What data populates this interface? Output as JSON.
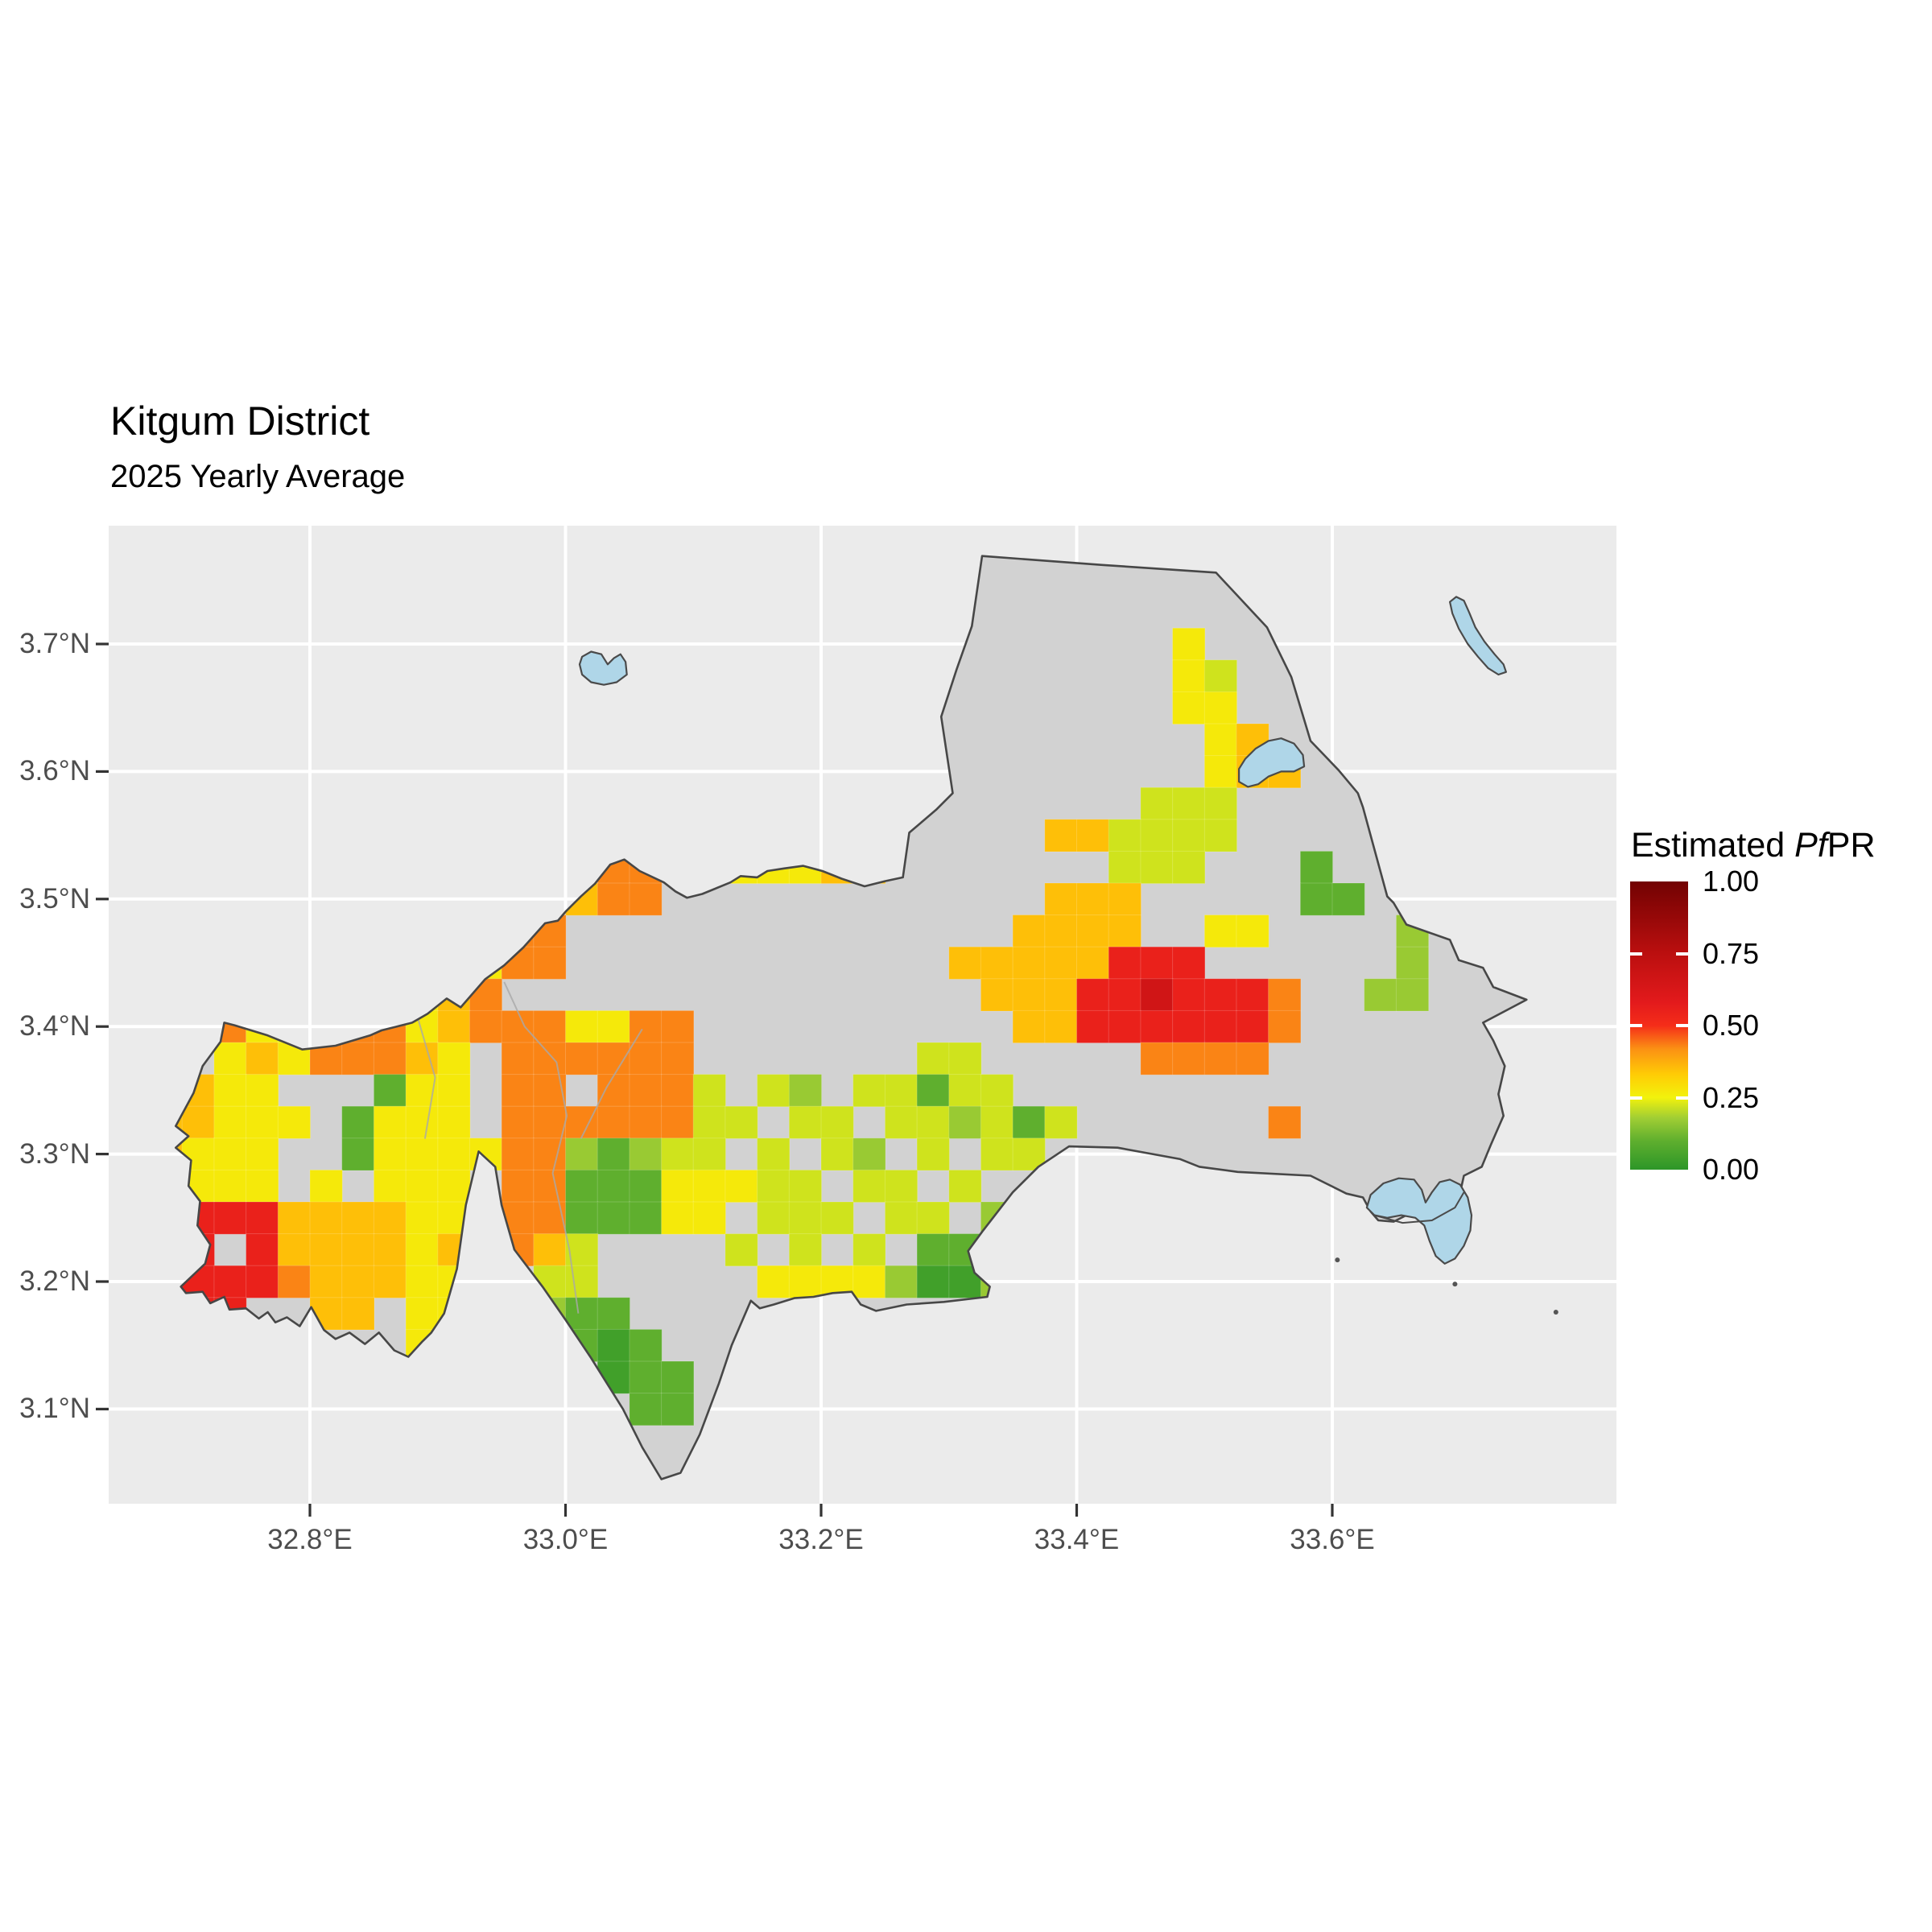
{
  "title": "Kitgum District",
  "subtitle": "2025 Yearly Average",
  "legend": {
    "title_prefix": "Estimated ",
    "title_italic": "Pf",
    "title_suffix": "PR",
    "labels": [
      "1.00",
      "0.75",
      "0.50",
      "0.25",
      "0.00"
    ],
    "label_values": [
      1.0,
      0.75,
      0.5,
      0.25,
      0.0
    ],
    "inner_tick_values": [
      0.75,
      0.5,
      0.25
    ]
  },
  "axes": {
    "x_ticks": [
      {
        "label": "32.8°E",
        "lon": 32.8
      },
      {
        "label": "33.0°E",
        "lon": 33.0
      },
      {
        "label": "33.2°E",
        "lon": 33.2
      },
      {
        "label": "33.4°E",
        "lon": 33.4
      },
      {
        "label": "33.6°E",
        "lon": 33.6
      }
    ],
    "y_ticks": [
      {
        "label": "3.7°N",
        "lat": 3.7
      },
      {
        "label": "3.6°N",
        "lat": 3.6
      },
      {
        "label": "3.5°N",
        "lat": 3.5
      },
      {
        "label": "3.4°N",
        "lat": 3.4
      },
      {
        "label": "3.3°N",
        "lat": 3.3
      },
      {
        "label": "3.2°N",
        "lat": 3.2
      },
      {
        "label": "3.1°N",
        "lat": 3.1
      }
    ]
  },
  "colors": {
    "panel_bg": "#EBEBEB",
    "gridline": "#FFFFFF",
    "district_fill": "#D2D2D2",
    "district_border": "#474747",
    "lake_fill": "#AFD6E8",
    "lake_border": "#4A4A4A",
    "river": "#A9A9A9",
    "axis_text": "#4D4D4D",
    "tick_mark": "#333333"
  },
  "chart_data": {
    "type": "heatmap",
    "title": "Kitgum District",
    "subtitle": "2025 Yearly Average",
    "legend_title": "Estimated PfPR",
    "value_range": [
      0.0,
      1.0
    ],
    "lon_range_shown": [
      32.64,
      33.82
    ],
    "lat_range_shown": [
      3.03,
      3.79
    ],
    "gradient_stops": [
      [
        0.0,
        "#2D9628"
      ],
      [
        0.1,
        "#5FAF2E"
      ],
      [
        0.18,
        "#A1CE34"
      ],
      [
        0.25,
        "#F2F20C"
      ],
      [
        0.33,
        "#FFCC05"
      ],
      [
        0.42,
        "#FB9014"
      ],
      [
        0.5,
        "#F52D19"
      ],
      [
        0.58,
        "#E31A1C"
      ],
      [
        0.75,
        "#BB0F0F"
      ],
      [
        1.0,
        "#720202"
      ]
    ],
    "raster": {
      "lon0": 32.675,
      "lat0": 3.7125,
      "step": 0.025,
      "value_map": {
        "1": 0.04,
        "2": 0.1,
        "3": 0.17,
        "4": 0.22,
        "5": 0.27,
        "6": 0.35,
        "7": 0.4,
        "8": 0.43,
        "9": 0.55,
        "B": 0.66
      },
      "rows": [
        "................................5.......",
        "................................54......",
        "................................55......",
        ".................................56.....",
        ".................................566....",
        "...............................444......",
        "............................664444......",
        "..............88..55566.......444...2...",
        ".............688............666.....22..",
        "..........588..............6666..55....3",
        ".........5588............66666999......3",
        "........568...............66699B9998..33",
        "..855888568885588..........669999998....",
        "..56588865.888888.......44.....8888.....",
        "5655...255.88.8884.43.44244.............",
        "66555.2555.88888844.44.443424......8....",
        "6555..255558832344.4.43.4.44............",
        ".555.5.555.8822255544.44.4..............",
        ".999666655.8822255.444.44.3.............",
        ".9.9666656.864....4.4.4.22..............",
        ".9998666555.44.....55553113.............",
        ".99..66.55..322.........................",
        "........5....212........................",
        "..............122.......................",
        "...............22.......................",
        "........................................",
        "........................................"
      ]
    },
    "district_boundary": [
      [
        32.733,
        3.403
      ],
      [
        32.741,
        3.401
      ],
      [
        32.767,
        3.393
      ],
      [
        32.794,
        3.382
      ],
      [
        32.82,
        3.385
      ],
      [
        32.847,
        3.393
      ],
      [
        32.856,
        3.397
      ],
      [
        32.88,
        3.403
      ],
      [
        32.892,
        3.41
      ],
      [
        32.907,
        3.422
      ],
      [
        32.918,
        3.415
      ],
      [
        32.937,
        3.437
      ],
      [
        32.952,
        3.448
      ],
      [
        32.967,
        3.462
      ],
      [
        32.984,
        3.481
      ],
      [
        32.994,
        3.483
      ],
      [
        33.0,
        3.49
      ],
      [
        33.012,
        3.502
      ],
      [
        33.023,
        3.512
      ],
      [
        33.035,
        3.527
      ],
      [
        33.046,
        3.531
      ],
      [
        33.058,
        3.522
      ],
      [
        33.077,
        3.513
      ],
      [
        33.086,
        3.506
      ],
      [
        33.095,
        3.501
      ],
      [
        33.107,
        3.504
      ],
      [
        33.129,
        3.513
      ],
      [
        33.137,
        3.518
      ],
      [
        33.15,
        3.517
      ],
      [
        33.158,
        3.522
      ],
      [
        33.171,
        3.524
      ],
      [
        33.186,
        3.526
      ],
      [
        33.201,
        3.522
      ],
      [
        33.216,
        3.516
      ],
      [
        33.234,
        3.51
      ],
      [
        33.25,
        3.514
      ],
      [
        33.264,
        3.517
      ],
      [
        33.269,
        3.552
      ],
      [
        33.29,
        3.57
      ],
      [
        33.303,
        3.583
      ],
      [
        33.294,
        3.643
      ],
      [
        33.306,
        3.68
      ],
      [
        33.318,
        3.714
      ],
      [
        33.326,
        3.769
      ],
      [
        33.42,
        3.762
      ],
      [
        33.509,
        3.756
      ],
      [
        33.549,
        3.713
      ],
      [
        33.568,
        3.674
      ],
      [
        33.583,
        3.624
      ],
      [
        33.605,
        3.601
      ],
      [
        33.62,
        3.583
      ],
      [
        33.624,
        3.572
      ],
      [
        33.643,
        3.502
      ],
      [
        33.648,
        3.497
      ],
      [
        33.658,
        3.48
      ],
      [
        33.692,
        3.468
      ],
      [
        33.699,
        3.452
      ],
      [
        33.718,
        3.446
      ],
      [
        33.726,
        3.431
      ],
      [
        33.752,
        3.421
      ],
      [
        33.718,
        3.403
      ],
      [
        33.726,
        3.389
      ],
      [
        33.735,
        3.369
      ],
      [
        33.73,
        3.347
      ],
      [
        33.734,
        3.33
      ],
      [
        33.724,
        3.307
      ],
      [
        33.717,
        3.29
      ],
      [
        33.703,
        3.283
      ],
      [
        33.701,
        3.274
      ],
      [
        33.69,
        3.262
      ],
      [
        33.678,
        3.255
      ],
      [
        33.67,
        3.258
      ],
      [
        33.66,
        3.253
      ],
      [
        33.648,
        3.247
      ],
      [
        33.636,
        3.248
      ],
      [
        33.63,
        3.255
      ],
      [
        33.624,
        3.266
      ],
      [
        33.611,
        3.269
      ],
      [
        33.583,
        3.283
      ],
      [
        33.526,
        3.286
      ],
      [
        33.496,
        3.29
      ],
      [
        33.481,
        3.296
      ],
      [
        33.432,
        3.305
      ],
      [
        33.394,
        3.306
      ],
      [
        33.37,
        3.29
      ],
      [
        33.35,
        3.27
      ],
      [
        33.326,
        3.239
      ],
      [
        33.315,
        3.224
      ],
      [
        33.32,
        3.207
      ],
      [
        33.332,
        3.196
      ],
      [
        33.33,
        3.188
      ],
      [
        33.296,
        3.184
      ],
      [
        33.267,
        3.182
      ],
      [
        33.243,
        3.177
      ],
      [
        33.231,
        3.182
      ],
      [
        33.224,
        3.192
      ],
      [
        33.209,
        3.191
      ],
      [
        33.194,
        3.188
      ],
      [
        33.179,
        3.187
      ],
      [
        33.163,
        3.182
      ],
      [
        33.152,
        3.179
      ],
      [
        33.145,
        3.185
      ],
      [
        33.13,
        3.15
      ],
      [
        33.12,
        3.12
      ],
      [
        33.105,
        3.08
      ],
      [
        33.09,
        3.05
      ],
      [
        33.075,
        3.045
      ],
      [
        33.06,
        3.07
      ],
      [
        33.045,
        3.1
      ],
      [
        33.02,
        3.14
      ],
      [
        33.0,
        3.17
      ],
      [
        32.982,
        3.196
      ],
      [
        32.96,
        3.225
      ],
      [
        32.95,
        3.26
      ],
      [
        32.945,
        3.29
      ],
      [
        32.932,
        3.302
      ],
      [
        32.922,
        3.26
      ],
      [
        32.915,
        3.21
      ],
      [
        32.905,
        3.175
      ],
      [
        32.895,
        3.16
      ],
      [
        32.888,
        3.153
      ],
      [
        32.877,
        3.141
      ],
      [
        32.866,
        3.146
      ],
      [
        32.854,
        3.16
      ],
      [
        32.843,
        3.151
      ],
      [
        32.831,
        3.16
      ],
      [
        32.82,
        3.155
      ],
      [
        32.811,
        3.162
      ],
      [
        32.801,
        3.18
      ],
      [
        32.792,
        3.165
      ],
      [
        32.782,
        3.172
      ],
      [
        32.773,
        3.168
      ],
      [
        32.767,
        3.176
      ],
      [
        32.76,
        3.171
      ],
      [
        32.75,
        3.179
      ],
      [
        32.737,
        3.178
      ],
      [
        32.733,
        3.188
      ],
      [
        32.722,
        3.183
      ],
      [
        32.716,
        3.192
      ],
      [
        32.703,
        3.191
      ],
      [
        32.699,
        3.196
      ],
      [
        32.718,
        3.214
      ],
      [
        32.722,
        3.229
      ],
      [
        32.712,
        3.244
      ],
      [
        32.714,
        3.263
      ],
      [
        32.705,
        3.275
      ],
      [
        32.707,
        3.295
      ],
      [
        32.695,
        3.305
      ],
      [
        32.705,
        3.314
      ],
      [
        32.695,
        3.322
      ],
      [
        32.709,
        3.348
      ],
      [
        32.716,
        3.369
      ],
      [
        32.73,
        3.388
      ]
    ],
    "lakes": [
      [
        [
          33.013,
          3.69
        ],
        [
          33.02,
          3.694
        ],
        [
          33.028,
          3.692
        ],
        [
          33.033,
          3.684
        ],
        [
          33.038,
          3.689
        ],
        [
          33.043,
          3.692
        ],
        [
          33.047,
          3.686
        ],
        [
          33.048,
          3.676
        ],
        [
          33.04,
          3.67
        ],
        [
          33.03,
          3.668
        ],
        [
          33.02,
          3.67
        ],
        [
          33.013,
          3.676
        ],
        [
          33.011,
          3.684
        ]
      ],
      [
        [
          33.527,
          3.602
        ],
        [
          33.532,
          3.61
        ],
        [
          33.54,
          3.618
        ],
        [
          33.55,
          3.624
        ],
        [
          33.56,
          3.626
        ],
        [
          33.57,
          3.622
        ],
        [
          33.577,
          3.613
        ],
        [
          33.578,
          3.604
        ],
        [
          33.57,
          3.6
        ],
        [
          33.56,
          3.6
        ],
        [
          33.55,
          3.596
        ],
        [
          33.542,
          3.59
        ],
        [
          33.534,
          3.588
        ],
        [
          33.527,
          3.592
        ]
      ],
      [
        [
          33.697,
          3.737
        ],
        [
          33.703,
          3.734
        ],
        [
          33.707,
          3.725
        ],
        [
          33.712,
          3.713
        ],
        [
          33.719,
          3.702
        ],
        [
          33.727,
          3.692
        ],
        [
          33.734,
          3.684
        ],
        [
          33.736,
          3.678
        ],
        [
          33.73,
          3.676
        ],
        [
          33.722,
          3.681
        ],
        [
          33.714,
          3.69
        ],
        [
          33.706,
          3.7
        ],
        [
          33.699,
          3.712
        ],
        [
          33.694,
          3.724
        ],
        [
          33.692,
          3.733
        ]
      ],
      [
        [
          33.63,
          3.268
        ],
        [
          33.64,
          3.277
        ],
        [
          33.652,
          3.281
        ],
        [
          33.664,
          3.28
        ],
        [
          33.67,
          3.272
        ],
        [
          33.673,
          3.262
        ],
        [
          33.678,
          3.27
        ],
        [
          33.684,
          3.278
        ],
        [
          33.692,
          3.28
        ],
        [
          33.7,
          3.276
        ],
        [
          33.706,
          3.266
        ],
        [
          33.709,
          3.252
        ],
        [
          33.708,
          3.24
        ],
        [
          33.703,
          3.228
        ],
        [
          33.696,
          3.218
        ],
        [
          33.688,
          3.214
        ],
        [
          33.681,
          3.22
        ],
        [
          33.676,
          3.232
        ],
        [
          33.672,
          3.244
        ],
        [
          33.665,
          3.25
        ],
        [
          33.654,
          3.252
        ],
        [
          33.643,
          3.25
        ],
        [
          33.633,
          3.252
        ],
        [
          33.627,
          3.258
        ]
      ]
    ],
    "lake_channel": [
      [
        33.633,
        3.252
      ],
      [
        33.655,
        3.246
      ],
      [
        33.678,
        3.248
      ],
      [
        33.696,
        3.258
      ],
      [
        33.703,
        3.27
      ]
    ],
    "rivers": [
      [
        [
          32.952,
          3.435
        ],
        [
          32.968,
          3.4
        ],
        [
          32.993,
          3.372
        ],
        [
          33.001,
          3.33
        ],
        [
          32.99,
          3.285
        ],
        [
          33.003,
          3.225
        ],
        [
          33.01,
          3.175
        ]
      ],
      [
        [
          33.06,
          3.398
        ],
        [
          33.032,
          3.352
        ],
        [
          33.012,
          3.312
        ]
      ],
      [
        [
          32.884,
          3.408
        ],
        [
          32.898,
          3.36
        ],
        [
          32.89,
          3.312
        ]
      ]
    ],
    "specks": [
      [
        33.604,
        3.217
      ],
      [
        33.696,
        3.198
      ],
      [
        33.775,
        3.176
      ]
    ]
  }
}
